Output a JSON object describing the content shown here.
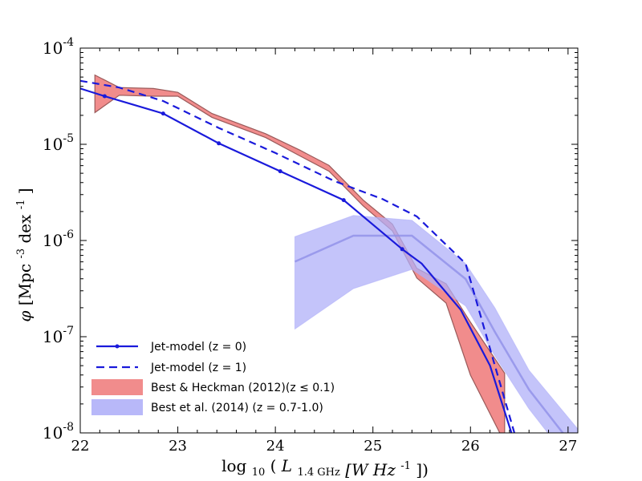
{
  "chart_data": {
    "type": "line",
    "xlabel": "log10(L1.4 GHz [W Hz^-1])",
    "ylabel": "phi [Mpc^-3 dex^-1]",
    "xlim": [
      22,
      27.1
    ],
    "ylim_log10": [
      -8,
      -4
    ],
    "x_ticks": [
      22,
      23,
      24,
      25,
      26,
      27
    ],
    "x_tick_labels": [
      "22",
      "23",
      "24",
      "25",
      "26",
      "27"
    ],
    "y_ticks_log10": [
      -8,
      -7,
      -6,
      -5,
      -4
    ],
    "y_tick_labels": [
      {
        "base": "10",
        "exp": "-8"
      },
      {
        "base": "10",
        "exp": "-7"
      },
      {
        "base": "10",
        "exp": "-6"
      },
      {
        "base": "10",
        "exp": "-5"
      },
      {
        "base": "10",
        "exp": "-4"
      }
    ],
    "axis_labels": {
      "x": {
        "prefix": "log",
        "prefix_sub": "10",
        "var": "L",
        "var_sub": "1.4 GHz",
        "units": "[W Hz",
        "units_exp": "-1",
        "close": "])"
      },
      "y": {
        "var": "φ",
        "units": "[Mpc",
        "exp1": "-3",
        "mid": " dex",
        "exp2": "-1",
        "close": "]"
      }
    },
    "legend": {
      "position": "lower-left",
      "entries": [
        {
          "label": "Jet-model (z = 0)",
          "style": "solid-with-markers",
          "color": "#1a1adb"
        },
        {
          "label": "Jet-model (z = 1)",
          "style": "dashed",
          "color": "#1a1adb"
        },
        {
          "label": "Best & Heckman (2012)(z ≤ 0.1)",
          "style": "fill",
          "color": "#f08080"
        },
        {
          "label": "Best et al. (2014) (z = 0.7-1.0)",
          "style": "fill",
          "color": "#b0b0f8"
        }
      ]
    },
    "series": [
      {
        "name": "Jet-model (z = 0)",
        "kind": "line",
        "color": "#1a1adb",
        "dash": false,
        "markers": true,
        "points": [
          [
            22.0,
            -4.42
          ],
          [
            22.25,
            -4.5
          ],
          [
            22.85,
            -4.68
          ],
          [
            23.42,
            -4.99
          ],
          [
            24.05,
            -5.28
          ],
          [
            24.7,
            -5.58
          ],
          [
            25.3,
            -6.09
          ],
          [
            25.5,
            -6.24
          ],
          [
            25.9,
            -6.72
          ],
          [
            26.2,
            -7.3
          ],
          [
            26.42,
            -8.0
          ]
        ],
        "marker_points": [
          [
            22.25,
            -4.5
          ],
          [
            22.85,
            -4.68
          ],
          [
            23.42,
            -4.99
          ],
          [
            24.05,
            -5.28
          ],
          [
            24.7,
            -5.58
          ],
          [
            25.3,
            -6.09
          ]
        ]
      },
      {
        "name": "Jet-model (z = 1)",
        "kind": "line",
        "color": "#1a1adb",
        "dash": true,
        "markers": false,
        "points": [
          [
            22.0,
            -4.34
          ],
          [
            22.4,
            -4.41
          ],
          [
            22.85,
            -4.55
          ],
          [
            23.42,
            -4.83
          ],
          [
            24.0,
            -5.09
          ],
          [
            24.6,
            -5.38
          ],
          [
            25.1,
            -5.57
          ],
          [
            25.45,
            -5.75
          ],
          [
            25.95,
            -6.24
          ],
          [
            26.25,
            -7.3
          ],
          [
            26.45,
            -8.0
          ]
        ]
      },
      {
        "name": "Best & Heckman (2012)(z ≤ 0.1)",
        "kind": "band",
        "color": "#f08080",
        "edge_color": "#9a5a5a",
        "x": [
          22.15,
          22.4,
          22.75,
          23.0,
          23.35,
          23.9,
          24.25,
          24.55,
          24.9,
          25.2,
          25.45,
          25.75,
          26.0,
          26.35
        ],
        "upper": [
          -4.28,
          -4.41,
          -4.42,
          -4.46,
          -4.68,
          -4.89,
          -5.06,
          -5.22,
          -5.58,
          -5.83,
          -6.29,
          -6.45,
          -6.85,
          -7.38
        ],
        "lower": [
          -4.67,
          -4.49,
          -4.5,
          -4.5,
          -4.72,
          -4.93,
          -5.12,
          -5.28,
          -5.64,
          -5.9,
          -6.39,
          -6.65,
          -7.4,
          -8.1
        ]
      },
      {
        "name": "Best et al. (2014) (z = 0.7-1.0)",
        "kind": "band",
        "color": "#b0b0f8",
        "center_color": "#9090e8",
        "x": [
          24.2,
          24.8,
          25.4,
          25.95,
          26.25,
          26.6,
          27.1
        ],
        "center": [
          -6.22,
          -5.95,
          -5.95,
          -6.4,
          -6.95,
          -7.55,
          -8.2
        ],
        "upper": [
          -5.96,
          -5.74,
          -5.79,
          -6.24,
          -6.7,
          -7.35,
          -7.96
        ],
        "lower": [
          -6.92,
          -6.5,
          -6.3,
          -6.68,
          -7.2,
          -7.75,
          -8.4
        ]
      }
    ]
  }
}
